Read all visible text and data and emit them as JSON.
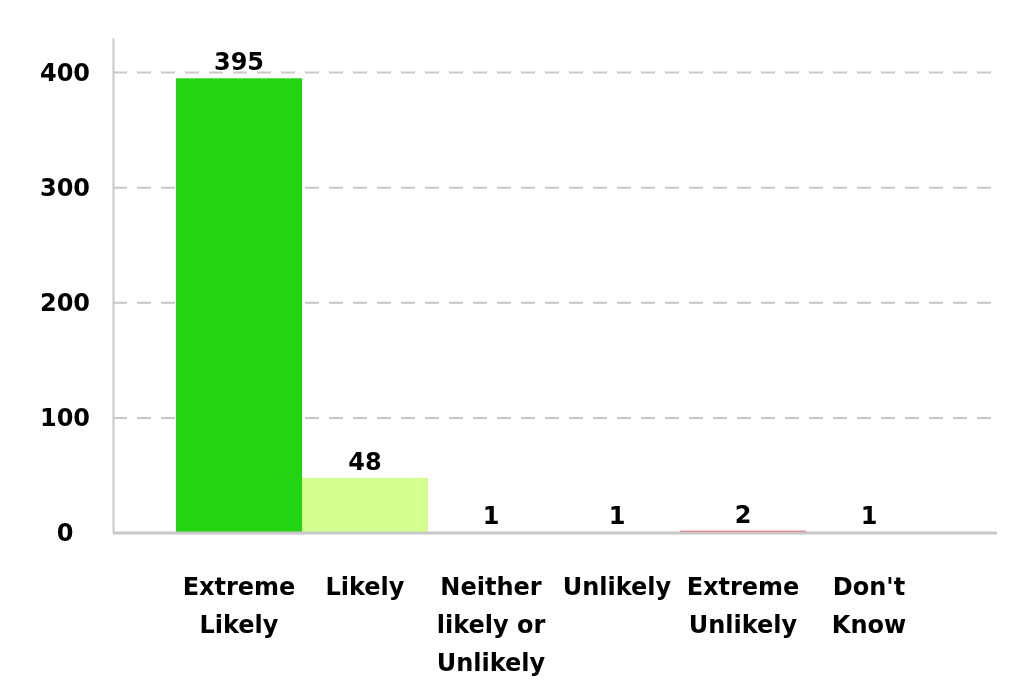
{
  "chart_data": {
    "type": "bar",
    "categories": [
      "Extreme Likely",
      "Likely",
      "Neither likely or Unlikely",
      "Unlikely",
      "Extreme Unlikely",
      "Don't Know"
    ],
    "values": [
      395,
      48,
      1,
      1,
      2,
      1
    ],
    "colors": [
      "#22d412",
      "#d4fe90",
      "#ffe066",
      "#ffa040",
      "#f05a5a",
      "#bbbbbb"
    ],
    "ylim": [
      0,
      430
    ],
    "yticks": [
      0,
      100,
      200,
      300,
      400
    ],
    "grid": "y",
    "data_labels": true
  }
}
